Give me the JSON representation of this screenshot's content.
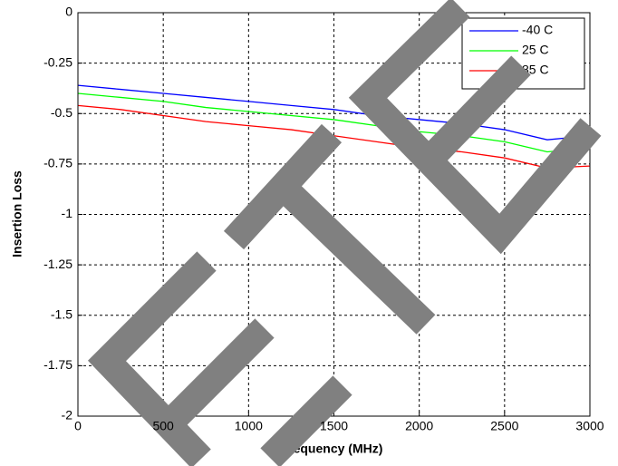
{
  "chart_data": {
    "type": "line",
    "x_label": "Frequency (MHz)",
    "y_label": "Insertion Loss",
    "x": [
      0,
      250,
      500,
      750,
      1000,
      1250,
      1500,
      1750,
      2000,
      2250,
      2500,
      2750,
      3000
    ],
    "series": [
      {
        "name": "-40 C",
        "color": "#0000ff",
        "values": [
          -0.36,
          -0.38,
          -0.4,
          -0.42,
          -0.44,
          -0.46,
          -0.48,
          -0.51,
          -0.53,
          -0.55,
          -0.58,
          -0.63,
          -0.61
        ]
      },
      {
        "name": "25 C",
        "color": "#00ff00",
        "values": [
          -0.4,
          -0.42,
          -0.44,
          -0.47,
          -0.49,
          -0.51,
          -0.53,
          -0.56,
          -0.59,
          -0.61,
          -0.64,
          -0.69,
          -0.67
        ]
      },
      {
        "name": "85 C",
        "color": "#ff0000",
        "values": [
          -0.46,
          -0.48,
          -0.51,
          -0.54,
          -0.56,
          -0.58,
          -0.61,
          -0.64,
          -0.67,
          -0.69,
          -0.72,
          -0.77,
          -0.76
        ]
      }
    ],
    "xlim": [
      0,
      3000
    ],
    "xticks": [
      0,
      500,
      1000,
      1500,
      2000,
      2500,
      3000
    ],
    "ylim": [
      -2,
      0
    ],
    "yticks": [
      -2,
      -1.75,
      -1.5,
      -1.25,
      -1,
      -0.75,
      -0.5,
      -0.25,
      0
    ],
    "grid": true,
    "legend": "upper right"
  }
}
